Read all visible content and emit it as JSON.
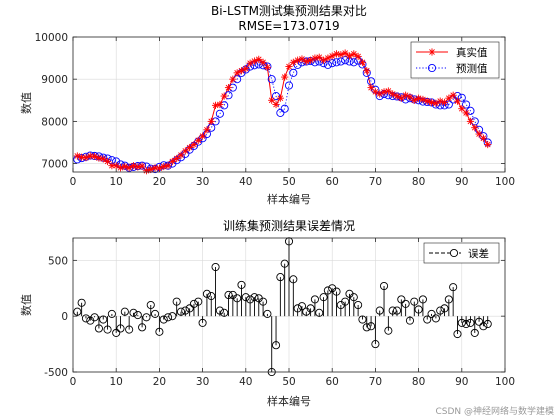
{
  "watermark": "CSDN @神经网络与数学建模",
  "colors": {
    "true": "#ff0000",
    "pred": "#0000ff",
    "error": "#000000",
    "grid": "#d9d9d9",
    "axis": "#262626"
  },
  "chart_data": [
    {
      "type": "line",
      "title": "Bi-LSTM测试集预测结果对比",
      "subtitle": "RMSE=173.0719",
      "xlabel": "样本编号",
      "ylabel": "数值",
      "xlim": [
        0,
        100
      ],
      "ylim": [
        6800,
        10000
      ],
      "xticks": [
        0,
        10,
        20,
        30,
        40,
        50,
        60,
        70,
        80,
        90,
        100
      ],
      "yticks": [
        7000,
        8000,
        9000,
        10000
      ],
      "grid": true,
      "legend_position": "top-right",
      "x": [
        1,
        2,
        3,
        4,
        5,
        6,
        7,
        8,
        9,
        10,
        11,
        12,
        13,
        14,
        15,
        16,
        17,
        18,
        19,
        20,
        21,
        22,
        23,
        24,
        25,
        26,
        27,
        28,
        29,
        30,
        31,
        32,
        33,
        34,
        35,
        36,
        37,
        38,
        39,
        40,
        41,
        42,
        43,
        44,
        45,
        46,
        47,
        48,
        49,
        50,
        51,
        52,
        53,
        54,
        55,
        56,
        57,
        58,
        59,
        60,
        61,
        62,
        63,
        64,
        65,
        66,
        67,
        68,
        69,
        70,
        71,
        72,
        73,
        74,
        75,
        76,
        77,
        78,
        79,
        80,
        81,
        82,
        83,
        84,
        85,
        86,
        87,
        88,
        89,
        90,
        91,
        92,
        93,
        94,
        95,
        96
      ],
      "series": [
        {
          "name": "真实值",
          "marker": "asterisk",
          "line": "solid",
          "color": "#ff0000",
          "values": [
            7180,
            7150,
            7140,
            7180,
            7170,
            7130,
            7110,
            7050,
            6950,
            6950,
            6900,
            6930,
            6900,
            6950,
            6920,
            6940,
            6830,
            6860,
            6900,
            6890,
            6930,
            6950,
            7050,
            7120,
            7200,
            7300,
            7380,
            7450,
            7550,
            7650,
            7800,
            8000,
            8380,
            8400,
            8600,
            8800,
            9000,
            9150,
            9200,
            9250,
            9380,
            9430,
            9470,
            9400,
            9280,
            8500,
            8400,
            8550,
            9050,
            9300,
            9400,
            9450,
            9480,
            9420,
            9450,
            9500,
            9520,
            9450,
            9500,
            9550,
            9600,
            9580,
            9620,
            9550,
            9600,
            9540,
            9400,
            9200,
            8800,
            8700,
            8650,
            8700,
            8720,
            8650,
            8600,
            8550,
            8620,
            8580,
            8500,
            8550,
            8520,
            8480,
            8450,
            8430,
            8480,
            8450,
            8550,
            8620,
            8480,
            8300,
            8200,
            8000,
            7850,
            7700,
            7600,
            7450
          ]
        },
        {
          "name": "预测值",
          "marker": "circle",
          "line": "dotted",
          "color": "#0000ff",
          "values": [
            7100,
            7130,
            7160,
            7190,
            7180,
            7170,
            7140,
            7120,
            7080,
            7050,
            6980,
            6950,
            6900,
            6920,
            6940,
            6950,
            6930,
            6880,
            6870,
            6920,
            6960,
            6950,
            7000,
            7080,
            7150,
            7230,
            7330,
            7420,
            7520,
            7600,
            7700,
            7850,
            8000,
            8180,
            8380,
            8620,
            8800,
            9000,
            9150,
            9230,
            9300,
            9330,
            9350,
            9330,
            9300,
            9000,
            8600,
            8200,
            8300,
            8850,
            9150,
            9340,
            9400,
            9420,
            9430,
            9400,
            9420,
            9380,
            9340,
            9380,
            9400,
            9420,
            9450,
            9420,
            9400,
            9440,
            9350,
            9150,
            8950,
            8750,
            8600,
            8650,
            8620,
            8600,
            8590,
            8570,
            8520,
            8550,
            8520,
            8500,
            8470,
            8460,
            8450,
            8400,
            8380,
            8380,
            8400,
            8520,
            8600,
            8560,
            8400,
            8250,
            8000,
            7800,
            7650,
            7500
          ]
        }
      ]
    },
    {
      "type": "stem",
      "title": "训练集预测结果误差情况",
      "xlabel": "样本编号",
      "ylabel": "数值",
      "xlim": [
        0,
        100
      ],
      "ylim": [
        -500,
        700
      ],
      "xticks": [
        0,
        10,
        20,
        30,
        40,
        50,
        60,
        70,
        80,
        90,
        100
      ],
      "yticks": [
        -500,
        0,
        500
      ],
      "grid": true,
      "legend_position": "top-right",
      "series": [
        {
          "name": "误差",
          "marker": "circle",
          "line": "dashed",
          "color": "#000000",
          "x": [
            1,
            2,
            3,
            4,
            5,
            6,
            7,
            8,
            9,
            10,
            11,
            12,
            13,
            14,
            15,
            16,
            17,
            18,
            19,
            20,
            21,
            22,
            23,
            24,
            25,
            26,
            27,
            28,
            29,
            30,
            31,
            32,
            33,
            34,
            35,
            36,
            37,
            38,
            39,
            40,
            41,
            42,
            43,
            44,
            45,
            46,
            47,
            48,
            49,
            50,
            51,
            52,
            53,
            54,
            55,
            56,
            57,
            58,
            59,
            60,
            61,
            62,
            63,
            64,
            65,
            66,
            67,
            68,
            69,
            70,
            71,
            72,
            73,
            74,
            75,
            76,
            77,
            78,
            79,
            80,
            81,
            82,
            83,
            84,
            85,
            86,
            87,
            88,
            89,
            90,
            91,
            92,
            93,
            94,
            95,
            96
          ],
          "values": [
            40,
            120,
            -20,
            -40,
            -10,
            -110,
            -30,
            -120,
            20,
            -150,
            -110,
            40,
            -120,
            30,
            10,
            -100,
            -10,
            100,
            20,
            -140,
            -30,
            -10,
            0,
            130,
            40,
            50,
            70,
            110,
            130,
            -60,
            200,
            180,
            440,
            50,
            30,
            190,
            190,
            160,
            280,
            170,
            150,
            170,
            160,
            130,
            20,
            -500,
            -260,
            350,
            470,
            670,
            330,
            70,
            90,
            40,
            70,
            150,
            30,
            170,
            230,
            250,
            220,
            100,
            130,
            200,
            170,
            100,
            -30,
            -100,
            -90,
            -250,
            50,
            270,
            -130,
            50,
            50,
            150,
            110,
            -40,
            130,
            60,
            150,
            -30,
            20,
            -20,
            50,
            70,
            150,
            260,
            -160,
            -60,
            -70,
            -60,
            -150,
            -50,
            -90,
            -70
          ]
        }
      ]
    }
  ]
}
